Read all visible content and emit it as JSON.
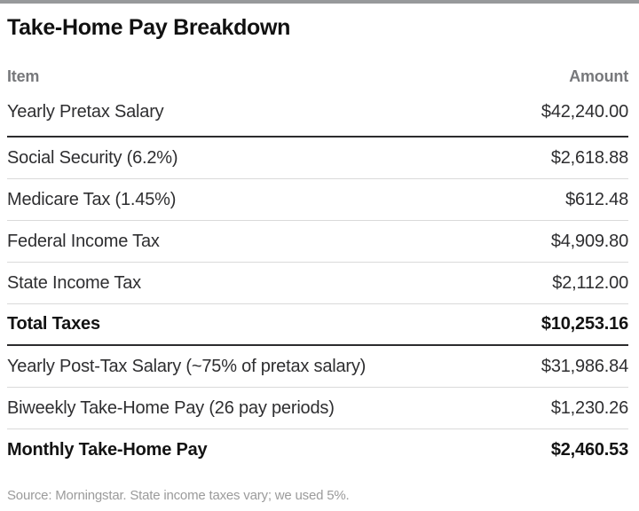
{
  "title": "Take-Home Pay Breakdown",
  "header": {
    "item": "Item",
    "amount": "Amount"
  },
  "rows": [
    {
      "item": "Yearly Pretax Salary",
      "amount": "$42,240.00",
      "bold": false,
      "divider": "thick"
    },
    {
      "item": "Social Security (6.2%)",
      "amount": "$2,618.88",
      "bold": false,
      "divider": "thin"
    },
    {
      "item": "Medicare Tax (1.45%)",
      "amount": "$612.48",
      "bold": false,
      "divider": "thin"
    },
    {
      "item": "Federal Income Tax",
      "amount": "$4,909.80",
      "bold": false,
      "divider": "thin"
    },
    {
      "item": "State Income Tax",
      "amount": "$2,112.00",
      "bold": false,
      "divider": "thin"
    },
    {
      "item": "Total Taxes",
      "amount": "$10,253.16",
      "bold": true,
      "divider": "thick"
    },
    {
      "item": "Yearly Post-Tax Salary (~75% of pretax salary)",
      "amount": "$31,986.84",
      "bold": false,
      "divider": "thin"
    },
    {
      "item": "Biweekly Take-Home Pay (26 pay periods)",
      "amount": "$1,230.26",
      "bold": false,
      "divider": "thin"
    },
    {
      "item": "Monthly Take-Home Pay",
      "amount": "$2,460.53",
      "bold": true,
      "divider": "none"
    }
  ],
  "source_note": "Source: Morningstar. State income taxes vary; we used 5%.",
  "colors": {
    "top_bar": "#97999b",
    "header_text": "#77787b",
    "body_text": "#2e2e30",
    "thin_divider": "#dadada",
    "thick_divider": "#2c2c2e",
    "source_text": "#9b9b9b"
  },
  "chart_data": {
    "type": "table",
    "title": "Take-Home Pay Breakdown",
    "columns": [
      "Item",
      "Amount"
    ],
    "rows": [
      [
        "Yearly Pretax Salary",
        42240.0
      ],
      [
        "Social Security (6.2%)",
        2618.88
      ],
      [
        "Medicare Tax (1.45%)",
        612.48
      ],
      [
        "Federal Income Tax",
        4909.8
      ],
      [
        "State Income Tax",
        2112.0
      ],
      [
        "Total Taxes",
        10253.16
      ],
      [
        "Yearly Post-Tax Salary (~75% of pretax salary)",
        31986.84
      ],
      [
        "Biweekly Take-Home Pay (26 pay periods)",
        1230.26
      ],
      [
        "Monthly Take-Home Pay",
        2460.53
      ]
    ],
    "source": "Source: Morningstar. State income taxes vary; we used 5%."
  }
}
